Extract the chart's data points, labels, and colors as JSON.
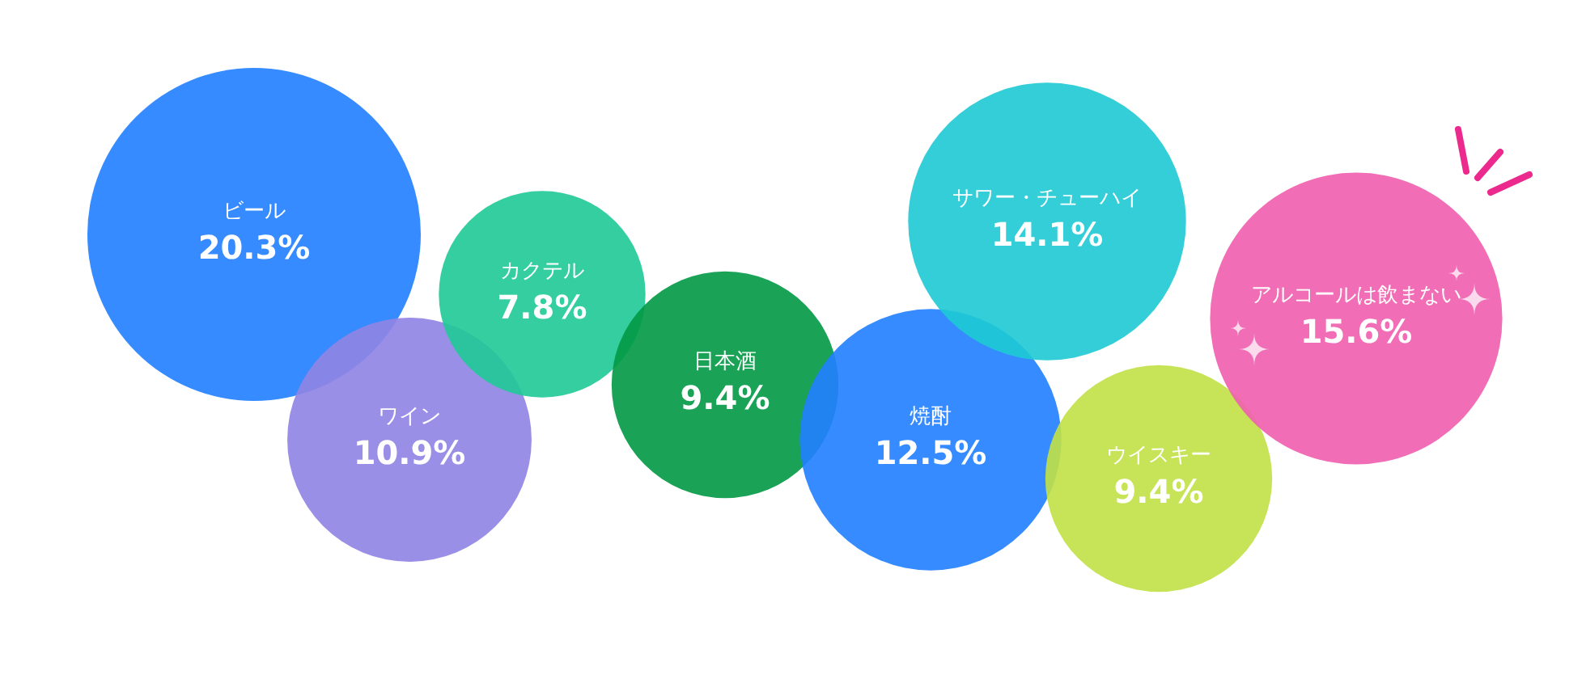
{
  "chart_data": {
    "type": "other",
    "categories": [
      "ビール",
      "ワイン",
      "カクテル",
      "日本酒",
      "焼酎",
      "サワー・チューハイ",
      "ウイスキー",
      "アルコールは飲まない"
    ],
    "values": [
      20.3,
      10.9,
      7.8,
      9.4,
      12.5,
      14.1,
      9.4,
      15.6
    ],
    "value_labels": [
      "20.3%",
      "10.9%",
      "7.8%",
      "9.4%",
      "12.5%",
      "14.1%",
      "9.4%",
      "15.6%"
    ],
    "colors": [
      "#2180ff",
      "#9084e3",
      "#20c997",
      "#039a45",
      "#2180ff",
      "#1fc9d4",
      "#c1e046",
      "#f060b0"
    ]
  }
}
